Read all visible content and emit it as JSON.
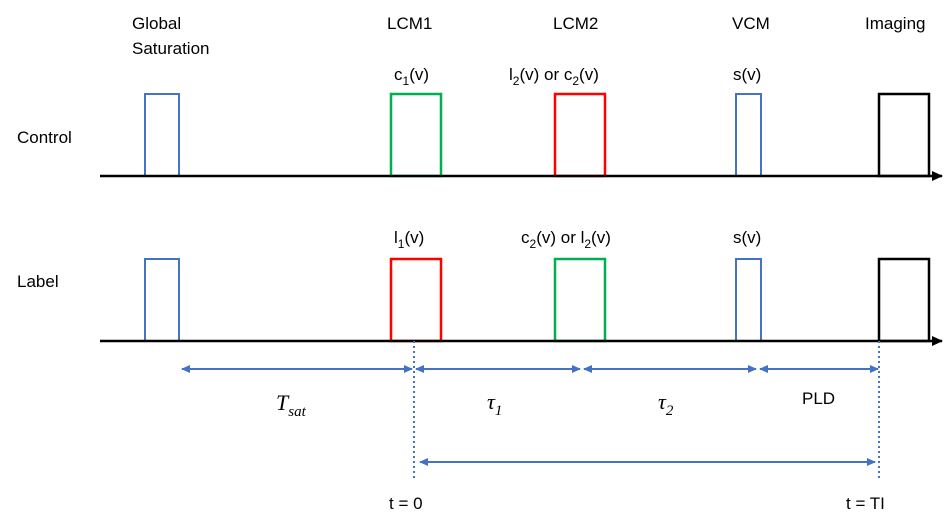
{
  "headers": {
    "global": [
      "Global",
      "Saturation"
    ],
    "lcm1": "LCM1",
    "lcm2": "LCM2",
    "vcm": "VCM",
    "imaging": "Imaging"
  },
  "rows": {
    "control": {
      "label": "Control",
      "pulse_labels": {
        "lcm1": {
          "base": "c",
          "sub": "1",
          "tail": "(v)"
        },
        "lcm2": {
          "p1_base": "l",
          "p1_sub": "2",
          "mid": "(v) or c",
          "p2_sub": "2",
          "tail": "(v)"
        },
        "vcm": "s(v)"
      }
    },
    "label": {
      "label": "Label",
      "pulse_labels": {
        "lcm1": {
          "base": "l",
          "sub": "1",
          "tail": "(v)"
        },
        "lcm2": {
          "p1_base": "c",
          "p1_sub": "2",
          "mid": "(v) or l",
          "p2_sub": "2",
          "tail": "(v)"
        },
        "vcm": "s(v)"
      }
    }
  },
  "intervals": {
    "tsat": {
      "base": "T",
      "sub": "sat"
    },
    "tau1": {
      "base": "τ",
      "sub": "1"
    },
    "tau2": {
      "base": "τ",
      "sub": "2"
    },
    "pld": "PLD"
  },
  "time_labels": {
    "t0": "t = 0",
    "ti": "t = TI"
  },
  "colors": {
    "blue": "#4472c4",
    "green": "#00b050",
    "red": "#ff0000",
    "black": "#000000"
  }
}
